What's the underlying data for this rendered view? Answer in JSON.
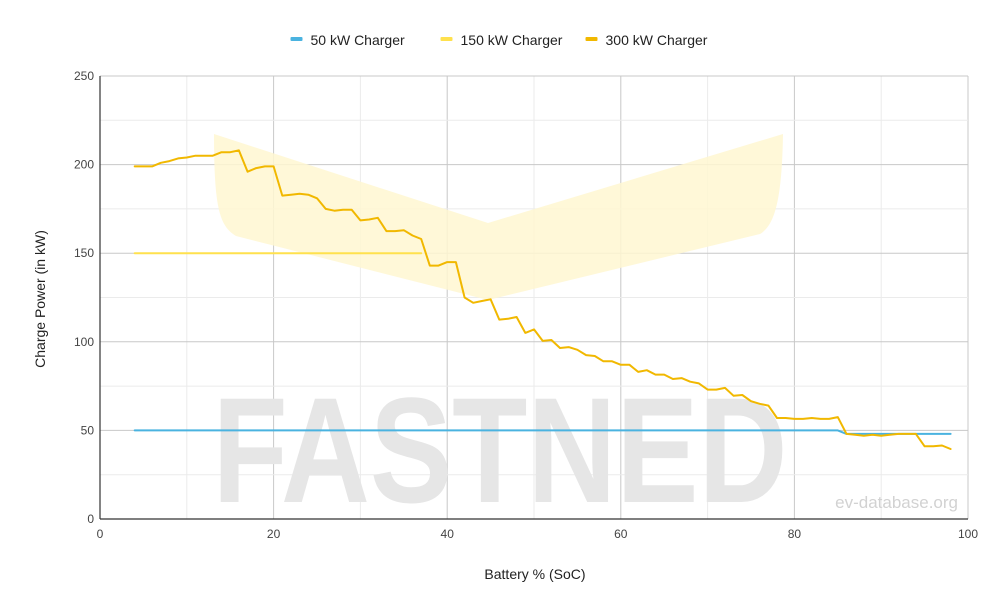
{
  "chart_data": {
    "type": "line",
    "xlabel": "Battery % (SoC)",
    "ylabel": "Charge Power (in kW)",
    "xlim": [
      0,
      100
    ],
    "ylim": [
      0,
      250
    ],
    "x_ticks": [
      0,
      20,
      40,
      60,
      80,
      100
    ],
    "y_ticks": [
      0,
      50,
      100,
      150,
      200,
      250
    ],
    "grid": true,
    "legend_position": "top-center",
    "watermark": "FASTNED",
    "credit": "ev-database.org",
    "series": [
      {
        "name": "50 kW Charger",
        "color": "#4ab3e0",
        "x": [
          4,
          85,
          86,
          98
        ],
        "y": [
          50,
          50,
          48,
          48
        ]
      },
      {
        "name": "150 kW Charger",
        "color": "#ffe14d",
        "x": [
          4,
          37
        ],
        "y": [
          150,
          150
        ]
      },
      {
        "name": "300 kW Charger",
        "color": "#f1b800",
        "x": [
          4,
          6,
          7,
          8,
          9,
          10,
          11,
          12,
          13,
          14,
          15,
          16,
          17,
          18,
          19,
          20,
          21,
          22,
          23,
          24,
          25,
          26,
          27,
          28,
          29,
          30,
          31,
          32,
          33,
          34,
          35,
          36,
          37,
          38,
          39,
          40,
          41,
          42,
          43,
          44,
          45,
          46,
          47,
          48,
          49,
          50,
          51,
          52,
          53,
          54,
          55,
          56,
          57,
          58,
          59,
          60,
          61,
          62,
          63,
          64,
          65,
          66,
          67,
          68,
          69,
          70,
          71,
          72,
          73,
          74,
          75,
          76,
          77,
          78,
          79,
          80,
          81,
          82,
          83,
          84,
          85,
          86,
          87,
          88,
          89,
          90,
          91,
          92,
          93,
          94,
          95,
          96,
          97,
          98
        ],
        "y": [
          199,
          199,
          201,
          202,
          203.5,
          204,
          205,
          205,
          205,
          207,
          207,
          208,
          196,
          198,
          199,
          199,
          182.5,
          183,
          183.5,
          183,
          181,
          175,
          174,
          174.5,
          174.5,
          168.5,
          169,
          170,
          162.5,
          162.5,
          163,
          160,
          158,
          143,
          143,
          145,
          145,
          125,
          122,
          123,
          124,
          112.5,
          113,
          114,
          105,
          107,
          100.5,
          101,
          96.5,
          97,
          95.5,
          92.5,
          92,
          89,
          89,
          87,
          87,
          83,
          84,
          81.5,
          81.5,
          79,
          79.5,
          77.5,
          76.5,
          73,
          73,
          74,
          69.5,
          70,
          66.5,
          65,
          64,
          57,
          57,
          56.5,
          56.5,
          57,
          56.5,
          56.5,
          57.5,
          48,
          47.5,
          47,
          47.5,
          47,
          47.5,
          48,
          48,
          48,
          41,
          41,
          41.5,
          39.5
        ]
      }
    ]
  }
}
